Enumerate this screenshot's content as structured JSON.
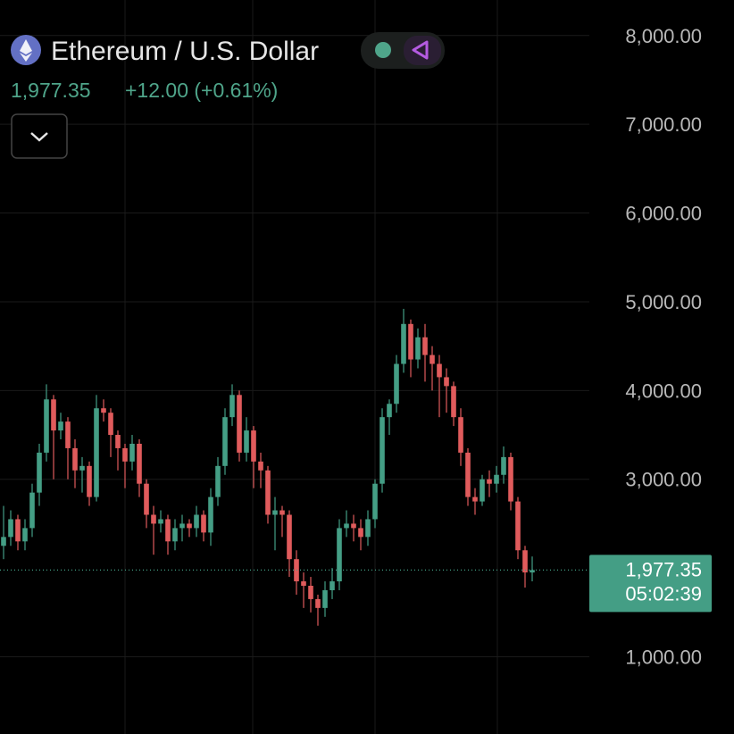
{
  "chart_data": {
    "type": "candlestick",
    "title": "Ethereum / U.S. Dollar",
    "price": "1,977.35",
    "change": "+12.00 (+0.61%)",
    "up_color": "#449e85",
    "down_color": "#e05b5c",
    "ylim": [
      130,
      8400
    ],
    "yticks": [
      {
        "value": 1000,
        "label": "1,000.00"
      },
      {
        "value": 3000,
        "label": "3,000.00"
      },
      {
        "value": 4000,
        "label": "4,000.00"
      },
      {
        "value": 5000,
        "label": "5,000.00"
      },
      {
        "value": 6000,
        "label": "6,000.00"
      },
      {
        "value": 7000,
        "label": "7,000.00"
      },
      {
        "value": 8000,
        "label": "8,000.00"
      }
    ],
    "grid": true,
    "last_price": {
      "value": 1977.35,
      "label": "1,977.35"
    },
    "countdown": "05:02:39",
    "open": [
      2250,
      2350,
      2550,
      2300,
      2450,
      2850,
      3300,
      3900,
      3550,
      3650,
      3350,
      3100,
      3150,
      2800,
      3800,
      3750,
      3500,
      3350,
      3200,
      3400,
      2950,
      2600,
      2500,
      2550,
      2300,
      2450,
      2500,
      2450,
      2600,
      2400,
      2800,
      3150,
      3700,
      3950,
      3300,
      3550,
      3200,
      3100,
      2600,
      2650,
      2600,
      2100,
      1850,
      1800,
      1650,
      1550,
      1750,
      1850,
      2450,
      2500,
      2450,
      2350,
      2550,
      2950,
      3700,
      3850,
      4300,
      4750,
      4350,
      4600,
      4400,
      4300,
      4150,
      4050,
      3700,
      3300,
      2800,
      2750,
      3000,
      2950,
      3050,
      3250,
      2750,
      2200,
      1950
    ],
    "high": [
      2700,
      2650,
      2600,
      2550,
      2950,
      3400,
      4070,
      3950,
      3750,
      3700,
      3450,
      3250,
      3200,
      3950,
      3900,
      3800,
      3550,
      3400,
      3500,
      3450,
      3000,
      2700,
      2650,
      2600,
      2550,
      2600,
      2550,
      2700,
      2650,
      2900,
      3250,
      3800,
      4070,
      4000,
      3700,
      3600,
      3300,
      3150,
      2800,
      2700,
      2650,
      2200,
      1950,
      1900,
      1700,
      1850,
      2000,
      2550,
      2650,
      2600,
      2550,
      2650,
      3000,
      3800,
      3900,
      4400,
      4920,
      4800,
      4700,
      4750,
      4500,
      4400,
      4250,
      4100,
      3800,
      3350,
      2900,
      3050,
      3100,
      3150,
      3370,
      3300,
      2800,
      2250,
      2130
    ],
    "low": [
      2100,
      2250,
      2200,
      2200,
      2350,
      2700,
      3200,
      3000,
      3450,
      3000,
      2900,
      2850,
      2700,
      2750,
      3650,
      3250,
      3100,
      2900,
      3100,
      2800,
      2450,
      2150,
      2400,
      2150,
      2200,
      2300,
      2350,
      2350,
      2300,
      2250,
      2700,
      3050,
      3600,
      3200,
      3200,
      2900,
      2900,
      2500,
      2200,
      2350,
      1900,
      1700,
      1550,
      1500,
      1350,
      1450,
      1650,
      1750,
      2350,
      2300,
      2200,
      2250,
      2450,
      2850,
      3500,
      3750,
      4200,
      4150,
      4250,
      4100,
      4000,
      3700,
      3750,
      3600,
      3150,
      2700,
      2600,
      2700,
      2800,
      2850,
      2950,
      2650,
      2100,
      1780,
      1850
    ],
    "close": [
      2350,
      2550,
      2300,
      2450,
      2850,
      3300,
      3900,
      3550,
      3650,
      3350,
      3100,
      3150,
      2800,
      3800,
      3750,
      3500,
      3350,
      3200,
      3400,
      2950,
      2600,
      2500,
      2550,
      2300,
      2450,
      2500,
      2450,
      2600,
      2400,
      2800,
      3150,
      3700,
      3950,
      3300,
      3550,
      3200,
      3100,
      2600,
      2650,
      2600,
      2100,
      1850,
      1800,
      1650,
      1550,
      1750,
      1850,
      2450,
      2500,
      2450,
      2350,
      2550,
      2950,
      3700,
      3850,
      4300,
      4750,
      4350,
      4600,
      4400,
      4300,
      4150,
      4050,
      3700,
      3300,
      2800,
      2750,
      3000,
      2950,
      3050,
      3250,
      2750,
      2200,
      1950,
      1977.35
    ]
  }
}
